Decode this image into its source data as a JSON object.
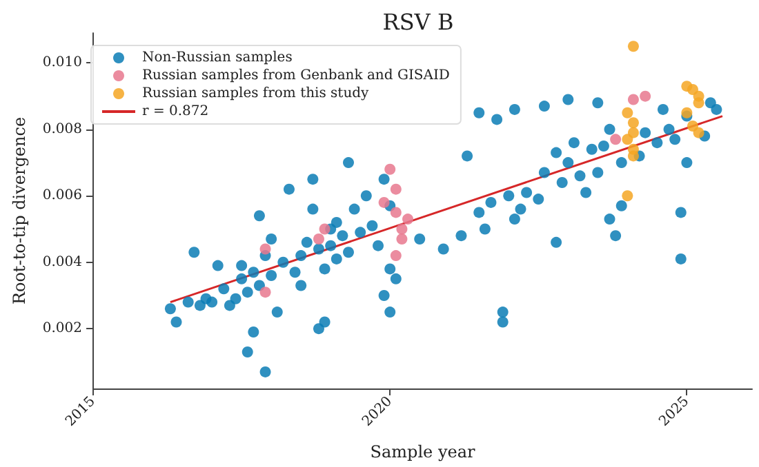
{
  "chart_data": {
    "type": "scatter",
    "title": "RSV B",
    "xlabel": "Sample year",
    "ylabel": "Root-to-tip divergence",
    "xlim": [
      2015,
      2026.1
    ],
    "ylim": [
      0.0002,
      0.0109
    ],
    "xticks": [
      {
        "value": 2015,
        "label": "2015"
      },
      {
        "value": 2020,
        "label": "2020"
      },
      {
        "value": 2025,
        "label": "2025"
      }
    ],
    "yticks": [
      0.002,
      0.004,
      0.006,
      0.008,
      {
        "value": 0.01,
        "label": "0.010"
      }
    ],
    "grid": false,
    "legend": "top left",
    "marker": "circle",
    "series": [
      {
        "name": "Non-Russian samples",
        "color": "#0a7db5",
        "x": [
          2016.3,
          2016.4,
          2016.6,
          2016.7,
          2016.8,
          2016.9,
          2017.0,
          2017.1,
          2017.2,
          2017.3,
          2017.4,
          2017.5,
          2017.5,
          2017.6,
          2017.6,
          2017.7,
          2017.7,
          2017.8,
          2017.8,
          2017.9,
          2017.9,
          2018.0,
          2018.0,
          2018.1,
          2018.2,
          2018.3,
          2018.4,
          2018.5,
          2018.5,
          2018.6,
          2018.7,
          2018.7,
          2018.8,
          2018.8,
          2018.9,
          2018.9,
          2019.0,
          2019.0,
          2019.1,
          2019.1,
          2019.2,
          2019.3,
          2019.3,
          2019.4,
          2019.5,
          2019.6,
          2019.7,
          2019.8,
          2019.9,
          2019.9,
          2020.0,
          2020.0,
          2020.0,
          2020.1,
          2020.5,
          2020.9,
          2021.2,
          2021.3,
          2021.5,
          2021.5,
          2021.6,
          2021.7,
          2021.8,
          2021.9,
          2021.9,
          2022.0,
          2022.1,
          2022.1,
          2022.2,
          2022.3,
          2022.5,
          2022.6,
          2022.6,
          2022.8,
          2022.8,
          2022.9,
          2023.0,
          2023.0,
          2023.1,
          2023.2,
          2023.3,
          2023.4,
          2023.5,
          2023.5,
          2023.6,
          2023.7,
          2023.7,
          2023.8,
          2023.9,
          2023.9,
          2024.2,
          2024.3,
          2024.5,
          2024.6,
          2024.7,
          2024.8,
          2024.9,
          2024.9,
          2025.0,
          2025.0,
          2025.4,
          2025.3,
          2025.5
        ],
        "values": [
          0.0026,
          0.0022,
          0.0028,
          0.0043,
          0.0027,
          0.0029,
          0.0028,
          0.0039,
          0.0032,
          0.0027,
          0.0029,
          0.0035,
          0.0039,
          0.0013,
          0.0031,
          0.0019,
          0.0037,
          0.0054,
          0.0033,
          0.0007,
          0.0042,
          0.0036,
          0.0047,
          0.0025,
          0.004,
          0.0062,
          0.0037,
          0.0042,
          0.0033,
          0.0046,
          0.0065,
          0.0056,
          0.002,
          0.0044,
          0.0022,
          0.0038,
          0.0045,
          0.005,
          0.0041,
          0.0052,
          0.0048,
          0.007,
          0.0043,
          0.0056,
          0.0049,
          0.006,
          0.0051,
          0.0045,
          0.003,
          0.0065,
          0.0025,
          0.0038,
          0.0057,
          0.0035,
          0.0047,
          0.0044,
          0.0048,
          0.0072,
          0.0055,
          0.0085,
          0.005,
          0.0058,
          0.0083,
          0.0022,
          0.0025,
          0.006,
          0.0053,
          0.0086,
          0.0056,
          0.0061,
          0.0059,
          0.0067,
          0.0087,
          0.0046,
          0.0073,
          0.0064,
          0.007,
          0.0089,
          0.0076,
          0.0066,
          0.0061,
          0.0074,
          0.0088,
          0.0067,
          0.0075,
          0.0053,
          0.008,
          0.0048,
          0.0057,
          0.007,
          0.0072,
          0.0079,
          0.0076,
          0.0086,
          0.008,
          0.0077,
          0.0041,
          0.0055,
          0.0084,
          0.007,
          0.0088,
          0.0078,
          0.0086
        ]
      },
      {
        "name": "Russian samples from Genbank and GISAID",
        "color": "#e8788e",
        "x": [
          2017.9,
          2017.9,
          2018.8,
          2018.9,
          2019.9,
          2020.0,
          2020.1,
          2020.1,
          2020.2,
          2020.2,
          2020.1,
          2020.3,
          2023.8,
          2024.1,
          2024.3
        ],
        "values": [
          0.0044,
          0.0031,
          0.0047,
          0.005,
          0.0058,
          0.0068,
          0.0062,
          0.0055,
          0.005,
          0.0047,
          0.0042,
          0.0053,
          0.0077,
          0.0089,
          0.009
        ]
      },
      {
        "name": "Russian samples from this study",
        "color": "#f5a623",
        "x": [
          2024.1,
          2024.0,
          2024.1,
          2024.1,
          2024.0,
          2024.1,
          2024.1,
          2024.0,
          2025.0,
          2025.1,
          2025.2,
          2025.2,
          2025.0,
          2025.1,
          2025.2
        ],
        "values": [
          0.0105,
          0.0085,
          0.0082,
          0.0079,
          0.0077,
          0.0074,
          0.0072,
          0.006,
          0.0093,
          0.0092,
          0.009,
          0.0088,
          0.0085,
          0.0081,
          0.0079
        ]
      },
      {
        "name": "r = 0.872",
        "type": "line",
        "marker": "none",
        "color": "#d62728",
        "x": [
          2016.3,
          2025.6
        ],
        "values": [
          0.0028,
          0.0084
        ]
      }
    ]
  }
}
